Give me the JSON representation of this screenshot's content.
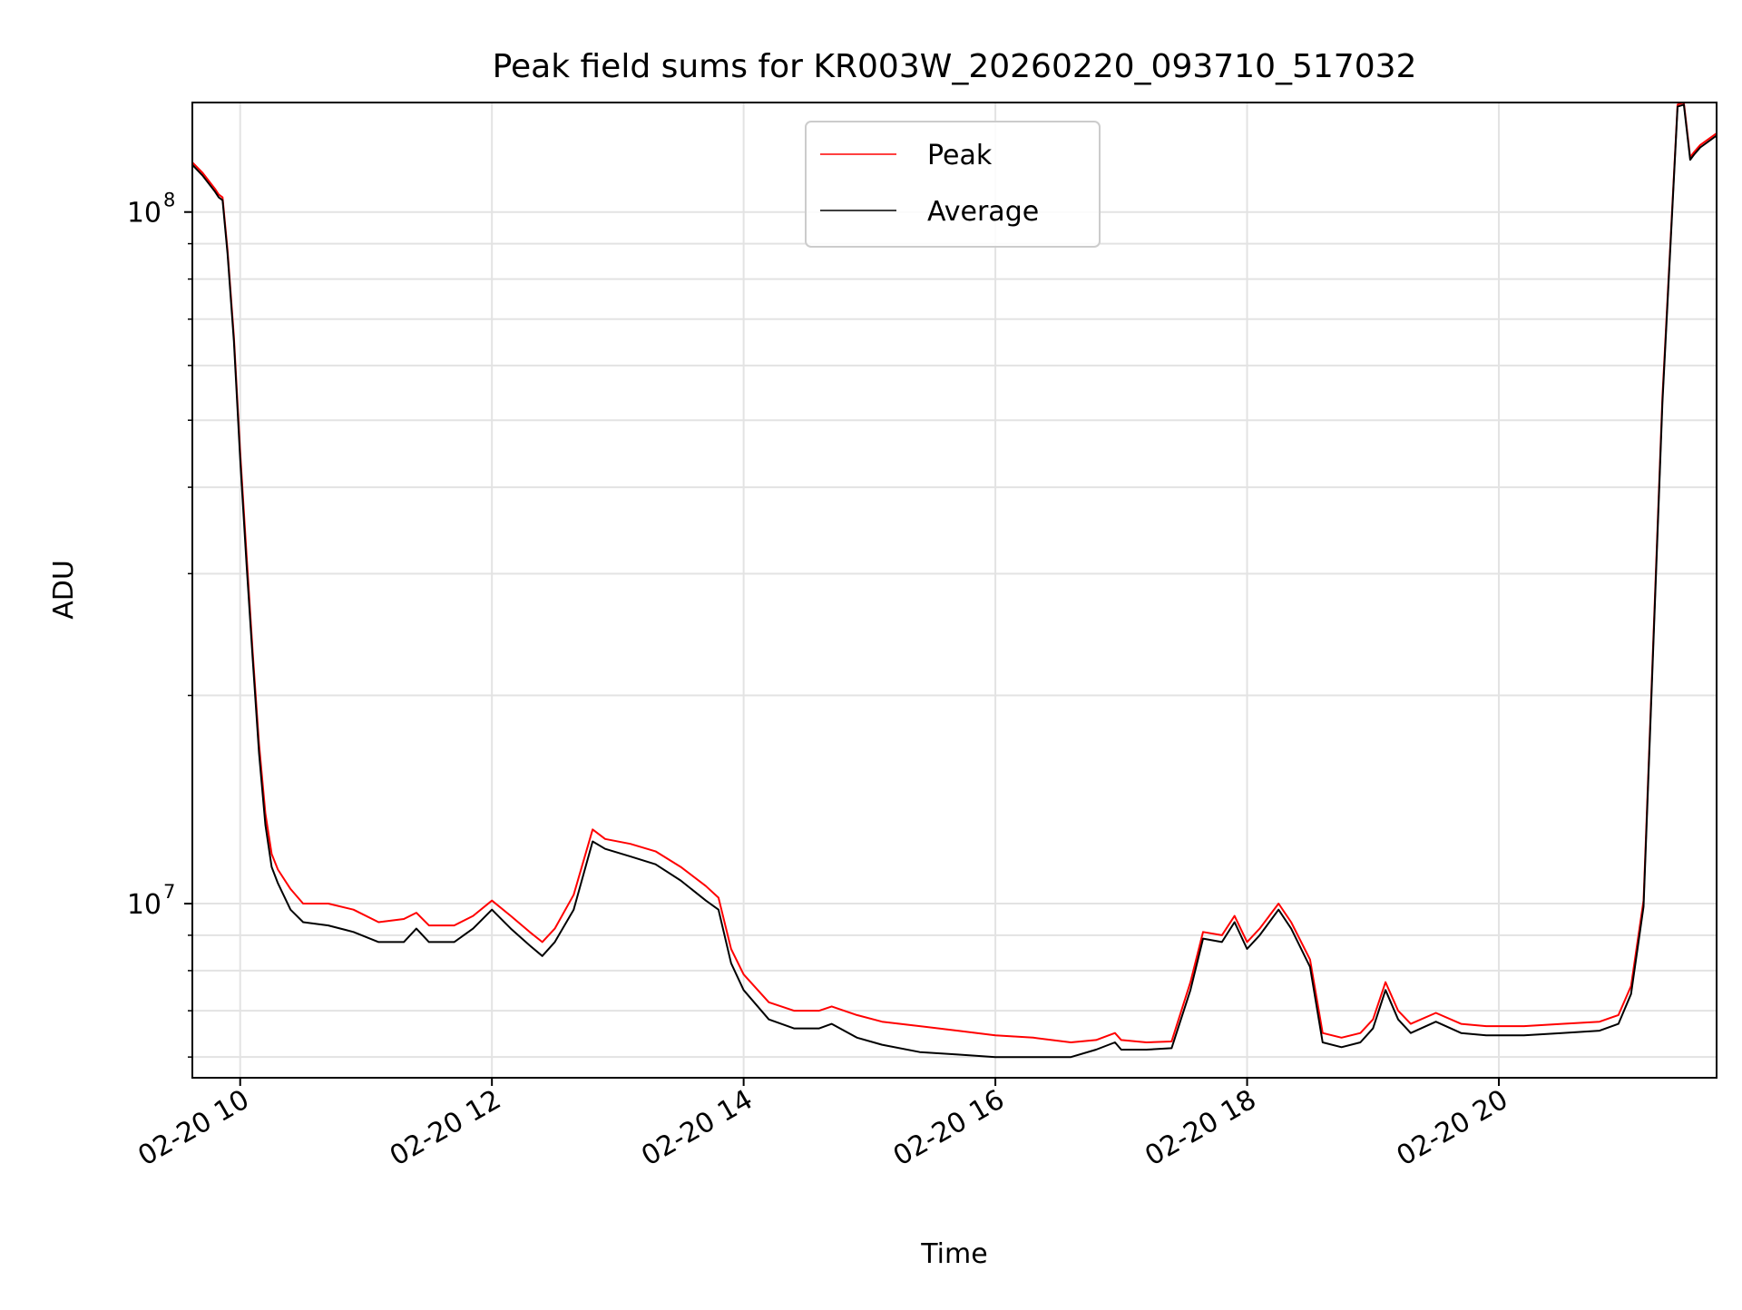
{
  "chart_data": {
    "type": "line",
    "title": "Peak field sums for KR003W_20260220_093710_517032",
    "xlabel": "Time",
    "ylabel": "ADU",
    "yscale": "log",
    "xlim": [
      9.62,
      21.73
    ],
    "ylim": [
      5600000,
      144000000
    ],
    "grid": true,
    "legend_position": "top-center",
    "x_ticks": [
      {
        "value": 10,
        "label": "02-20 10"
      },
      {
        "value": 12,
        "label": "02-20 12"
      },
      {
        "value": 14,
        "label": "02-20 14"
      },
      {
        "value": 16,
        "label": "02-20 16"
      },
      {
        "value": 18,
        "label": "02-20 18"
      },
      {
        "value": 20,
        "label": "02-20 20"
      }
    ],
    "y_ticks": [
      {
        "value": 10000000,
        "base": "10",
        "exp": "7"
      },
      {
        "value": 100000000,
        "base": "10",
        "exp": "8"
      }
    ],
    "x_unit": "hours of 2026-02-20",
    "series": [
      {
        "name": "Peak",
        "color": "#ff0000",
        "x": [
          9.62,
          9.7,
          9.8,
          9.83,
          9.86,
          9.9,
          9.95,
          10.0,
          10.05,
          10.1,
          10.15,
          10.2,
          10.25,
          10.3,
          10.4,
          10.5,
          10.7,
          10.9,
          11.1,
          11.3,
          11.4,
          11.5,
          11.7,
          11.85,
          12.0,
          12.15,
          12.3,
          12.4,
          12.5,
          12.65,
          12.8,
          12.9,
          13.1,
          13.3,
          13.5,
          13.7,
          13.8,
          13.9,
          14.0,
          14.2,
          14.4,
          14.6,
          14.7,
          14.9,
          15.1,
          15.4,
          15.7,
          16.0,
          16.3,
          16.6,
          16.8,
          16.95,
          17.0,
          17.2,
          17.4,
          17.55,
          17.65,
          17.8,
          17.9,
          18.0,
          18.1,
          18.25,
          18.35,
          18.5,
          18.6,
          18.75,
          18.9,
          19.0,
          19.1,
          19.2,
          19.3,
          19.5,
          19.7,
          19.9,
          20.2,
          20.5,
          20.8,
          20.95,
          21.05,
          21.15,
          21.3,
          21.42,
          21.47,
          21.52,
          21.55,
          21.6,
          21.73
        ],
        "y": [
          118000000,
          114000000,
          108000000,
          106000000,
          105000000,
          88000000,
          66000000,
          45000000,
          32000000,
          23000000,
          17000000,
          13500000,
          11800000,
          11200000,
          10500000,
          10000000,
          10000000,
          9800000,
          9400000,
          9500000,
          9700000,
          9300000,
          9300000,
          9600000,
          10100000,
          9600000,
          9100000,
          8800000,
          9200000,
          10300000,
          12800000,
          12400000,
          12200000,
          11900000,
          11300000,
          10600000,
          10200000,
          8600000,
          7900000,
          7200000,
          7000000,
          7000000,
          7100000,
          6900000,
          6750000,
          6650000,
          6550000,
          6450000,
          6400000,
          6300000,
          6350000,
          6500000,
          6350000,
          6300000,
          6320000,
          7700000,
          9100000,
          9000000,
          9600000,
          8800000,
          9200000,
          10000000,
          9400000,
          8300000,
          6500000,
          6400000,
          6500000,
          6800000,
          7700000,
          7000000,
          6700000,
          6950000,
          6700000,
          6650000,
          6650000,
          6700000,
          6750000,
          6900000,
          7600000,
          10100000,
          54000000,
          143000000,
          144000000,
          120000000,
          122000000,
          125000000,
          130000000
        ]
      },
      {
        "name": "Average",
        "color": "#000000",
        "x": [
          9.62,
          9.7,
          9.8,
          9.83,
          9.86,
          9.9,
          9.95,
          10.0,
          10.05,
          10.1,
          10.15,
          10.2,
          10.25,
          10.3,
          10.4,
          10.5,
          10.7,
          10.9,
          11.1,
          11.3,
          11.4,
          11.5,
          11.7,
          11.85,
          12.0,
          12.15,
          12.3,
          12.4,
          12.5,
          12.65,
          12.8,
          12.9,
          13.1,
          13.3,
          13.5,
          13.7,
          13.8,
          13.9,
          14.0,
          14.2,
          14.4,
          14.6,
          14.7,
          14.9,
          15.1,
          15.4,
          15.7,
          16.0,
          16.3,
          16.6,
          16.8,
          16.95,
          17.0,
          17.2,
          17.4,
          17.55,
          17.65,
          17.8,
          17.9,
          18.0,
          18.1,
          18.25,
          18.35,
          18.5,
          18.6,
          18.75,
          18.9,
          19.0,
          19.1,
          19.2,
          19.3,
          19.5,
          19.7,
          19.9,
          20.2,
          20.5,
          20.8,
          20.95,
          21.05,
          21.15,
          21.3,
          21.42,
          21.47,
          21.52,
          21.55,
          21.6,
          21.73
        ],
        "y": [
          117000000,
          113000000,
          107000000,
          105000000,
          104000000,
          87000000,
          65000000,
          44000000,
          31000000,
          22500000,
          16500000,
          13000000,
          11300000,
          10700000,
          9800000,
          9400000,
          9300000,
          9100000,
          8800000,
          8800000,
          9200000,
          8800000,
          8800000,
          9200000,
          9800000,
          9200000,
          8700000,
          8400000,
          8800000,
          9800000,
          12300000,
          12000000,
          11700000,
          11400000,
          10800000,
          10100000,
          9800000,
          8200000,
          7500000,
          6800000,
          6600000,
          6600000,
          6700000,
          6400000,
          6250000,
          6100000,
          6050000,
          6000000,
          6000000,
          6000000,
          6150000,
          6300000,
          6150000,
          6150000,
          6180000,
          7500000,
          8900000,
          8800000,
          9400000,
          8600000,
          9000000,
          9800000,
          9200000,
          8100000,
          6300000,
          6200000,
          6300000,
          6600000,
          7500000,
          6800000,
          6500000,
          6750000,
          6500000,
          6450000,
          6450000,
          6500000,
          6550000,
          6700000,
          7400000,
          9900000,
          53000000,
          142000000,
          143000000,
          119000000,
          121000000,
          124000000,
          129000000
        ]
      }
    ]
  }
}
